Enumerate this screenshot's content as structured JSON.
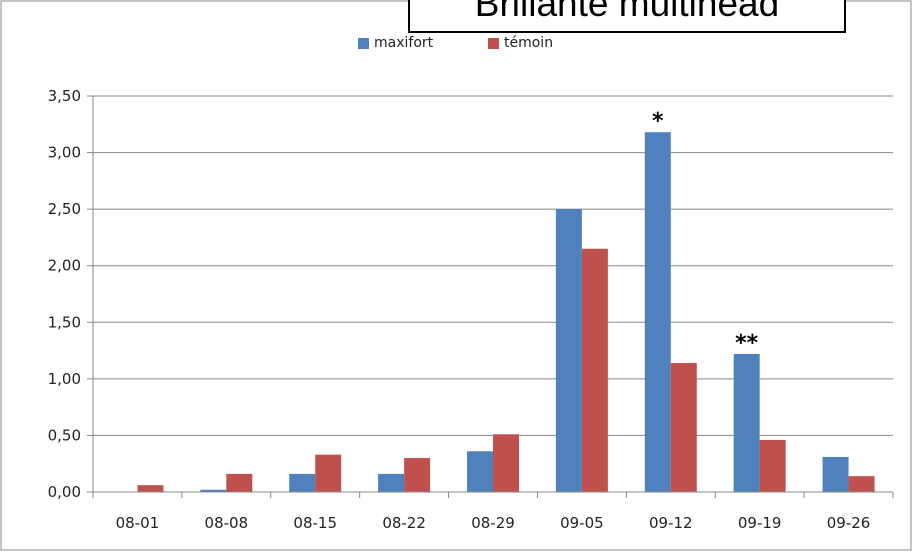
{
  "chart_data": {
    "type": "bar",
    "title": "Brillante multihead",
    "categories": [
      "08-01",
      "08-08",
      "08-15",
      "08-22",
      "08-29",
      "09-05",
      "09-12",
      "09-19",
      "09-26"
    ],
    "series": [
      {
        "name": "maxifort",
        "color": "#4F81BD",
        "values": [
          0.0,
          0.02,
          0.16,
          0.16,
          0.36,
          2.5,
          3.18,
          1.22,
          0.31
        ]
      },
      {
        "name": "témoin",
        "color": "#C0504D",
        "values": [
          0.06,
          0.16,
          0.33,
          0.3,
          0.51,
          2.15,
          1.14,
          0.46,
          0.14
        ]
      }
    ],
    "yticks": [
      "0,00",
      "0,50",
      "1,00",
      "1,50",
      "2,00",
      "2,50",
      "3,00",
      "3,50"
    ],
    "ylim": [
      0,
      3.5
    ],
    "annotations": [
      {
        "text": "*",
        "category": "09-12",
        "series": "maxifort"
      },
      {
        "text": "**",
        "category": "09-19",
        "series": "maxifort"
      }
    ],
    "grid": true,
    "legend_position": "top"
  }
}
